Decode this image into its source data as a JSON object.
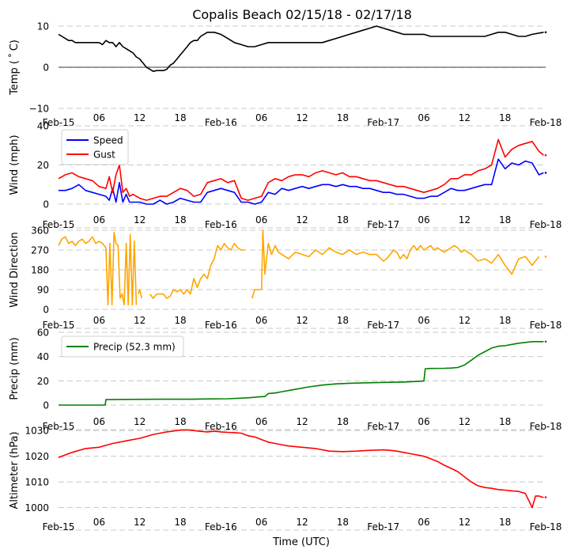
{
  "title": "Copalis Beach 02/15/18 - 02/17/18",
  "xlabel": "Time (UTC)",
  "x_ticks": [
    "Feb-15",
    "06",
    "12",
    "18",
    "Feb-16",
    "06",
    "12",
    "18",
    "Feb-17",
    "06",
    "12",
    "18",
    "Feb-18"
  ],
  "x_range_hours": [
    0,
    72
  ],
  "chart_data": [
    {
      "type": "line",
      "id": "temp",
      "ylabel": "Temp ($^\\circ$C)",
      "ylabel_display": "Temp ( ˚ C)",
      "ylim": [
        -10,
        10
      ],
      "yticks": [
        -10,
        0,
        10
      ],
      "grid": true,
      "zero_line": true,
      "legend": null,
      "series": [
        {
          "name": "Temp",
          "color": "#000000",
          "x_hours": [
            0,
            0.5,
            1,
            1.5,
            2,
            2.5,
            3,
            3.5,
            4,
            5,
            6,
            6.5,
            7,
            7.5,
            8,
            8.5,
            9,
            9.5,
            10,
            10.5,
            11,
            11.5,
            12,
            12.5,
            13,
            13.5,
            14,
            14.5,
            15,
            15.5,
            16,
            16.5,
            17,
            17.5,
            18,
            18.5,
            19,
            19.5,
            20,
            20.5,
            21,
            22,
            23,
            24,
            25,
            26,
            27,
            28,
            29,
            30,
            31,
            32,
            33,
            34,
            35,
            36,
            37,
            38,
            39,
            40,
            41,
            42,
            43,
            44,
            45,
            46,
            47,
            48,
            49,
            50,
            51,
            52,
            53,
            54,
            55,
            56,
            57,
            58,
            59,
            60,
            61,
            62,
            63,
            64,
            65,
            66,
            67,
            68,
            69,
            70,
            71.7
          ],
          "values": [
            8,
            7.5,
            7,
            6.5,
            6.5,
            6,
            6,
            6,
            6,
            6,
            6,
            5.5,
            6.5,
            6,
            6,
            5,
            6,
            5,
            4.5,
            4,
            3.5,
            2.5,
            2,
            1,
            0,
            -0.5,
            -1,
            -0.8,
            -0.8,
            -0.8,
            -0.5,
            0.5,
            1,
            2,
            3,
            4,
            5,
            6,
            6.5,
            6.5,
            7.5,
            8.5,
            8.5,
            8,
            7,
            6,
            5.5,
            5,
            5,
            5.5,
            6,
            6,
            6,
            6,
            6,
            6,
            6,
            6,
            6,
            6.5,
            7,
            7.5,
            8,
            8.5,
            9,
            9.5,
            10,
            9.5,
            9,
            8.5,
            8,
            8,
            8,
            8,
            7.5,
            7.5,
            7.5,
            7.5,
            7.5,
            7.5,
            7.5,
            7.5,
            7.5,
            8,
            8.5,
            8.5,
            8,
            7.5,
            7.5,
            8,
            8.5,
            8
          ]
        }
      ]
    },
    {
      "type": "line",
      "id": "wind",
      "ylabel": "Wind (mph)",
      "ylim": [
        0,
        40
      ],
      "yticks": [
        0,
        20,
        40
      ],
      "grid": true,
      "legend": "top-left",
      "series": [
        {
          "name": "Speed",
          "color": "#0000ff",
          "x_hours": [
            0,
            1,
            2,
            3,
            4,
            5,
            6,
            7,
            7.5,
            8,
            8.5,
            9,
            9.5,
            10,
            10.5,
            11,
            12,
            13,
            14,
            15,
            16,
            17,
            18,
            19,
            20,
            21,
            22,
            23,
            24,
            25,
            26,
            27,
            28,
            29,
            30,
            31,
            32,
            33,
            34,
            35,
            36,
            37,
            38,
            39,
            40,
            41,
            42,
            43,
            44,
            45,
            46,
            47,
            48,
            49,
            50,
            51,
            52,
            53,
            54,
            55,
            56,
            57,
            58,
            59,
            60,
            61,
            62,
            63,
            64,
            65,
            66,
            67,
            68,
            69,
            70,
            71,
            71.7
          ],
          "values": [
            7,
            7,
            8,
            10,
            7,
            6,
            5,
            4,
            2,
            8,
            1,
            11,
            1,
            5,
            1,
            1,
            1,
            0,
            0,
            2,
            0,
            1,
            3,
            2,
            1,
            1,
            6,
            7,
            8,
            7,
            6,
            1,
            1,
            0,
            1,
            6,
            5,
            8,
            7,
            8,
            9,
            8,
            9,
            10,
            10,
            9,
            10,
            9,
            9,
            8,
            8,
            7,
            6,
            6,
            5,
            5,
            4,
            3,
            3,
            4,
            4,
            6,
            8,
            7,
            7,
            8,
            9,
            10,
            10,
            23,
            18,
            21,
            20,
            22,
            21,
            15,
            16
          ]
        },
        {
          "name": "Gust",
          "color": "#ff0000",
          "x_hours": [
            0,
            1,
            2,
            3,
            4,
            5,
            6,
            7,
            7.5,
            8,
            8.5,
            9,
            9.5,
            10,
            10.5,
            11,
            12,
            13,
            14,
            15,
            16,
            17,
            18,
            19,
            20,
            21,
            22,
            23,
            24,
            25,
            26,
            27,
            28,
            29,
            30,
            31,
            32,
            33,
            34,
            35,
            36,
            37,
            38,
            39,
            40,
            41,
            42,
            43,
            44,
            45,
            46,
            47,
            48,
            49,
            50,
            51,
            52,
            53,
            54,
            55,
            56,
            57,
            58,
            59,
            60,
            61,
            62,
            63,
            64,
            65,
            66,
            67,
            68,
            69,
            70,
            71,
            71.7
          ],
          "values": [
            13,
            15,
            16,
            14,
            13,
            12,
            9,
            8,
            14,
            6,
            15,
            20,
            6,
            8,
            4,
            5,
            3,
            2,
            3,
            4,
            4,
            6,
            8,
            7,
            4,
            5,
            11,
            12,
            13,
            11,
            12,
            3,
            2,
            3,
            4,
            11,
            13,
            12,
            14,
            15,
            15,
            14,
            16,
            17,
            16,
            15,
            16,
            14,
            14,
            13,
            12,
            12,
            11,
            10,
            9,
            9,
            8,
            7,
            6,
            7,
            8,
            10,
            13,
            13,
            15,
            15,
            17,
            18,
            20,
            33,
            24,
            28,
            30,
            31,
            32,
            27,
            25
          ]
        }
      ]
    },
    {
      "type": "line",
      "id": "direction",
      "ylabel": "Wind Direction",
      "ylim": [
        0,
        360
      ],
      "yticks": [
        0,
        90,
        180,
        270,
        360
      ],
      "grid": true,
      "legend": null,
      "series": [
        {
          "name": "Direction",
          "color": "#ffa500",
          "x_hours": [
            0,
            0.5,
            1,
            1.5,
            2,
            2.5,
            3,
            3.5,
            4,
            4.5,
            5,
            5.5,
            6,
            6.5,
            7,
            7.3,
            7.6,
            7.9,
            8.2,
            8.5,
            8.8,
            9.1,
            9.4,
            9.7,
            10,
            10.3,
            10.6,
            10.9,
            11.2,
            11.5,
            null,
            11.8,
            12,
            12.3,
            null,
            13.5,
            14,
            14.5,
            15,
            15.5,
            16,
            16.5,
            17,
            17.5,
            18,
            18.5,
            19,
            19.5,
            20,
            20.5,
            21,
            21.5,
            22,
            22.5,
            23,
            23.5,
            24,
            24.5,
            25,
            25.5,
            26,
            26.5,
            27,
            27.5,
            null,
            27.9,
            null,
            28.6,
            29,
            29.5,
            30,
            30.2,
            30.5,
            31,
            31.5,
            32,
            32.5,
            33,
            34,
            35,
            36,
            37,
            38,
            39,
            40,
            41,
            42,
            43,
            44,
            45,
            46,
            47,
            48,
            48.5,
            49,
            49.5,
            50,
            50.5,
            51,
            51.5,
            52,
            52.5,
            53,
            53.5,
            54,
            54.5,
            55,
            55.5,
            56,
            56.5,
            57,
            57.5,
            58,
            58.5,
            59,
            59.5,
            60,
            61,
            62,
            63,
            64,
            65,
            66,
            67,
            68,
            69,
            70,
            71
          ],
          "values": [
            290,
            320,
            330,
            300,
            310,
            290,
            310,
            320,
            300,
            310,
            330,
            300,
            310,
            300,
            280,
            20,
            300,
            20,
            350,
            300,
            290,
            50,
            70,
            20,
            300,
            20,
            340,
            20,
            310,
            20,
            null,
            70,
            90,
            50,
            null,
            70,
            50,
            70,
            70,
            70,
            50,
            60,
            90,
            80,
            90,
            70,
            90,
            70,
            140,
            100,
            140,
            160,
            140,
            200,
            230,
            290,
            270,
            300,
            280,
            270,
            300,
            280,
            270,
            270,
            null,
            250,
            null,
            50,
            90,
            90,
            90,
            360,
            160,
            300,
            250,
            290,
            260,
            250,
            230,
            260,
            250,
            240,
            270,
            250,
            280,
            260,
            250,
            270,
            250,
            260,
            250,
            250,
            220,
            230,
            250,
            270,
            260,
            230,
            250,
            230,
            270,
            290,
            270,
            290,
            270,
            280,
            290,
            270,
            280,
            270,
            260,
            270,
            280,
            290,
            280,
            260,
            270,
            250,
            220,
            230,
            210,
            250,
            200,
            160,
            230,
            240,
            200,
            240,
            260,
            220,
            180,
            260,
            240,
            270,
            320,
            290,
            260,
            270,
            250
          ]
        }
      ]
    },
    {
      "type": "line",
      "id": "precip",
      "ylabel": "Precip (mm)",
      "ylim": [
        0,
        60
      ],
      "yticks": [
        0,
        20,
        40,
        60
      ],
      "grid": true,
      "legend": "top-left",
      "series": [
        {
          "name": "Precip (52.3 mm)",
          "color": "#008000",
          "x_hours": [
            0,
            6.9,
            7,
            10,
            15,
            20,
            21,
            25,
            28,
            30,
            30.5,
            31,
            32,
            33,
            35,
            37,
            39,
            41,
            43,
            45,
            47,
            49,
            51,
            53,
            54,
            54.2,
            55,
            57,
            58,
            59,
            60,
            61,
            62,
            63,
            64,
            65,
            66,
            67,
            68,
            70,
            71.7
          ],
          "values": [
            0,
            0,
            4.5,
            4.7,
            4.8,
            4.8,
            5,
            5.2,
            6,
            7,
            7,
            9.5,
            10,
            11,
            13,
            15,
            16.5,
            17.5,
            18,
            18.3,
            18.5,
            18.8,
            19,
            19.5,
            19.8,
            30,
            30.2,
            30.3,
            30.5,
            31,
            33,
            37,
            41,
            44,
            47,
            48.5,
            49,
            50,
            51,
            52.3,
            52.3
          ]
        }
      ]
    },
    {
      "type": "line",
      "id": "altimeter",
      "ylabel": "Altimeter (hPa)",
      "ylim": [
        998,
        1031
      ],
      "yticks": [
        1000,
        1010,
        1020,
        1030
      ],
      "grid": true,
      "legend": null,
      "series": [
        {
          "name": "Altimeter",
          "color": "#ff0000",
          "x_hours": [
            0,
            2,
            4,
            6,
            8,
            10,
            12,
            14,
            16,
            18,
            19,
            20,
            21,
            22,
            23,
            24,
            25,
            26,
            27,
            28,
            29,
            30,
            31,
            32,
            33,
            34,
            36,
            38,
            40,
            42,
            44,
            46,
            48,
            49,
            50,
            51,
            52,
            53,
            54,
            55,
            56,
            57,
            58,
            59,
            60,
            61,
            62,
            63,
            64,
            65,
            66,
            67,
            68,
            69,
            70,
            70.5,
            71,
            71.5,
            71.7
          ],
          "values": [
            1019.5,
            1021.5,
            1023,
            1023.5,
            1025,
            1026,
            1027,
            1028.5,
            1029.5,
            1030.2,
            1030.3,
            1030,
            1029.7,
            1029.5,
            1029.8,
            1029.5,
            1029.3,
            1029.2,
            1029,
            1028,
            1027.5,
            1026.5,
            1025.5,
            1025,
            1024.5,
            1024,
            1023.5,
            1023,
            1022,
            1021.8,
            1022,
            1022.3,
            1022.5,
            1022.3,
            1022,
            1021.5,
            1021,
            1020.5,
            1020,
            1019,
            1018,
            1016.5,
            1015.3,
            1014,
            1012,
            1010,
            1008.5,
            1007.8,
            1007.5,
            1007,
            1006.8,
            1006.5,
            1006.3,
            1005.5,
            1000,
            1004.5,
            1004.5,
            1004,
            1004
          ]
        }
      ]
    }
  ]
}
